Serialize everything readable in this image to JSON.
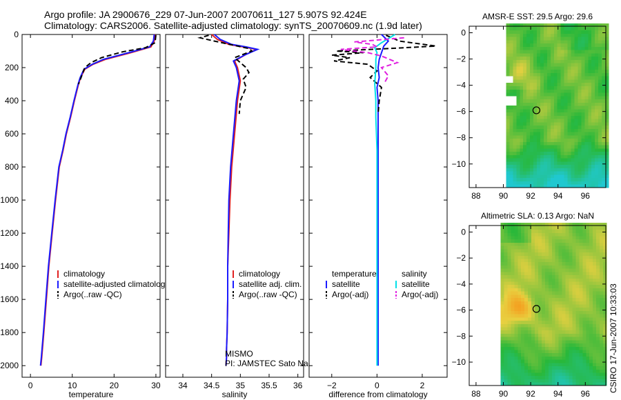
{
  "title": {
    "line1": "Argo profile: JA 2900676_229 07-Jun-2007 20070611_127 5.907S 92.424E",
    "line2": "Climatology: CARS2006. Satellite-adjusted climatology: synTS_20070609.nc (1.9d later)"
  },
  "credit": "CSIRO 17-Jun-2007 10:33:03",
  "colors": {
    "climatology": "#e02020",
    "satellite": "#1a1aff",
    "argo": "#000000",
    "satellite_salinity": "#00e0e8",
    "argo_salinity_adj": "#e020e0",
    "map_land": "#ffffff",
    "map_low": "#20c8d0",
    "map_mid": "#28b83a",
    "map_high": "#e8d040",
    "map_peak": "#f4a020"
  },
  "chart_data": [
    {
      "type": "line",
      "panel": "temperature",
      "xlabel": "temperature",
      "ylabel": "",
      "xlim": [
        -2,
        31
      ],
      "ylim": [
        2070,
        0
      ],
      "xticks": [
        0,
        10,
        20,
        30
      ],
      "yticks": [
        0,
        200,
        400,
        600,
        800,
        1000,
        1200,
        1400,
        1600,
        1800,
        2000
      ],
      "legend": [
        "climatology",
        "satellite-adjusted climatology",
        "Argo(..raw -QC)"
      ],
      "series": [
        {
          "name": "climatology",
          "style": "solid",
          "color": "climatology",
          "x": [
            29.8,
            29.6,
            28.8,
            24.0,
            18.0,
            15.0,
            13.0,
            12.0,
            11.5,
            10.5,
            9.6,
            8.6,
            7.8,
            6.9,
            6.0,
            5.2,
            4.4,
            3.8,
            3.2,
            2.7,
            2.5
          ],
          "y": [
            0,
            40,
            75,
            110,
            150,
            180,
            210,
            260,
            300,
            400,
            500,
            600,
            700,
            800,
            1000,
            1200,
            1400,
            1600,
            1800,
            1950,
            2000
          ]
        },
        {
          "name": "satellite-adjusted climatology",
          "style": "solid",
          "color": "satellite",
          "x": [
            29.6,
            29.4,
            28.5,
            23.5,
            17.5,
            14.8,
            12.8,
            11.9,
            11.4,
            10.4,
            9.5,
            8.5,
            7.7,
            6.8,
            5.9,
            5.1,
            4.3,
            3.7,
            3.1,
            2.6,
            2.4
          ],
          "y": [
            0,
            40,
            75,
            110,
            150,
            180,
            210,
            260,
            300,
            400,
            500,
            600,
            700,
            800,
            1000,
            1200,
            1400,
            1600,
            1800,
            1950,
            2000
          ]
        },
        {
          "name": "Argo(..raw -QC)",
          "style": "dashed",
          "color": "argo",
          "x": [
            30.0,
            29.8,
            27.5,
            22.0,
            17.0,
            14.5,
            13.0,
            12.1,
            11.5
          ],
          "y": [
            5,
            50,
            80,
            105,
            140,
            170,
            200,
            260,
            300
          ]
        }
      ]
    },
    {
      "type": "line",
      "panel": "salinity",
      "xlabel": "salinity",
      "xlim": [
        33.7,
        36.1
      ],
      "ylim": [
        2070,
        0
      ],
      "xticks": [
        34,
        34.5,
        35,
        35.5,
        36
      ],
      "legend": [
        "climatology",
        "satellite adj. clim.",
        "Argo(..raw -QC)"
      ],
      "annotation": [
        "MISMO",
        "PI: JAMSTEC Sato Naoki"
      ],
      "series": [
        {
          "name": "climatology",
          "style": "solid",
          "color": "climatology",
          "x": [
            34.5,
            34.6,
            34.8,
            35.05,
            35.28,
            35.1,
            34.9,
            34.95,
            35.0,
            34.95,
            34.9,
            34.85,
            34.82,
            34.8,
            34.78,
            34.78,
            34.77,
            34.76,
            34.76,
            34.75
          ],
          "y": [
            0,
            30,
            60,
            75,
            90,
            120,
            160,
            200,
            280,
            400,
            600,
            800,
            1000,
            1200,
            1400,
            1600,
            1800,
            1900,
            1950,
            2000
          ]
        },
        {
          "name": "satellite adj. clim.",
          "style": "solid",
          "color": "satellite",
          "x": [
            34.55,
            34.65,
            34.85,
            35.1,
            35.3,
            35.1,
            34.88,
            34.93,
            34.98,
            34.93,
            34.88,
            34.83,
            34.8,
            34.79,
            34.78,
            34.78,
            34.77,
            34.76,
            34.76,
            34.75
          ],
          "y": [
            0,
            30,
            60,
            75,
            90,
            120,
            160,
            200,
            280,
            400,
            600,
            800,
            1000,
            1200,
            1400,
            1600,
            1800,
            1900,
            1950,
            2000
          ]
        },
        {
          "name": "Argo(..raw -QC)",
          "style": "dashed",
          "color": "argo",
          "x": [
            34.45,
            34.3,
            34.55,
            34.75,
            34.95,
            35.15,
            35.2,
            35.05,
            34.9,
            35.0,
            35.1,
            35.15,
            35.05,
            35.1,
            35.0,
            34.98
          ],
          "y": [
            5,
            20,
            40,
            55,
            70,
            85,
            100,
            120,
            140,
            170,
            200,
            230,
            270,
            320,
            400,
            480
          ]
        }
      ]
    },
    {
      "type": "line",
      "panel": "difference",
      "xlabel": "difference from climatology",
      "xlim": [
        -3,
        3.1
      ],
      "ylim": [
        2070,
        0
      ],
      "xticks": [
        -2,
        0,
        2
      ],
      "legend_temperature": [
        "temperature",
        "satellite",
        "Argo(-adj)"
      ],
      "legend_salinity": [
        "salinity",
        "satellite",
        "Argo(-adj)"
      ],
      "series": [
        {
          "name": "temperature satellite",
          "style": "solid",
          "color": "satellite",
          "x": [
            0.2,
            0.5,
            0.3,
            0.2,
            0.1,
            0.05,
            0.1,
            0.0,
            0.05,
            0.05,
            0.05,
            0.05,
            0.05
          ],
          "y": [
            0,
            40,
            70,
            110,
            150,
            200,
            260,
            320,
            400,
            700,
            1000,
            1500,
            2000
          ]
        },
        {
          "name": "temperature Argo(-adj)",
          "style": "dashed",
          "color": "argo",
          "x": [
            0.4,
            1.0,
            2.6,
            0.5,
            -1.8,
            -0.6,
            -2.0,
            -1.2,
            -1.9,
            -0.4,
            0.0,
            -0.3,
            0.2,
            0.1,
            0.05
          ],
          "y": [
            5,
            40,
            70,
            85,
            100,
            110,
            125,
            140,
            160,
            180,
            220,
            260,
            320,
            400,
            480
          ]
        },
        {
          "name": "salinity satellite",
          "style": "solid",
          "color": "satellite_salinity",
          "x": [
            0.8,
            0.2,
            -0.1,
            0.0,
            -0.05,
            -0.05,
            -0.1,
            -0.05,
            -0.05,
            0.0,
            0.0,
            0.0,
            0.0
          ],
          "y": [
            0,
            50,
            80,
            110,
            150,
            200,
            300,
            400,
            500,
            700,
            1000,
            1500,
            2000
          ]
        },
        {
          "name": "salinity Argo(-adj)",
          "style": "dashed",
          "color": "argo_salinity_adj",
          "x": [
            1.2,
            -1.0,
            -0.2,
            0.0,
            -1.6,
            -0.4,
            0.2,
            0.9,
            0.2,
            0.5,
            0.3
          ],
          "y": [
            20,
            45,
            60,
            75,
            90,
            110,
            130,
            170,
            200,
            250,
            300
          ]
        }
      ]
    },
    {
      "type": "heatmap",
      "panel": "sst_map",
      "title": "AMSR-E SST: 29.5 Argo: 29.6",
      "xlim": [
        87.5,
        97.5
      ],
      "ylim": [
        -11.8,
        0.5
      ],
      "xticks": [
        88,
        90,
        92,
        94,
        96
      ],
      "yticks": [
        0,
        -2,
        -4,
        -6,
        -8,
        -10
      ],
      "marker": {
        "lon": 92.42,
        "lat": -5.91
      },
      "land_edge_lon": 90.2
    },
    {
      "type": "heatmap",
      "panel": "sla_map",
      "title": "Altimetric SLA: 0.13 Argo: NaN",
      "xlim": [
        87.5,
        97.5
      ],
      "ylim": [
        -11.8,
        0.5
      ],
      "xticks": [
        88,
        90,
        92,
        94,
        96
      ],
      "yticks": [
        0,
        -2,
        -4,
        -6,
        -8,
        -10
      ],
      "marker": {
        "lon": 92.42,
        "lat": -5.91
      },
      "land_edge_lon": 89.8
    }
  ]
}
